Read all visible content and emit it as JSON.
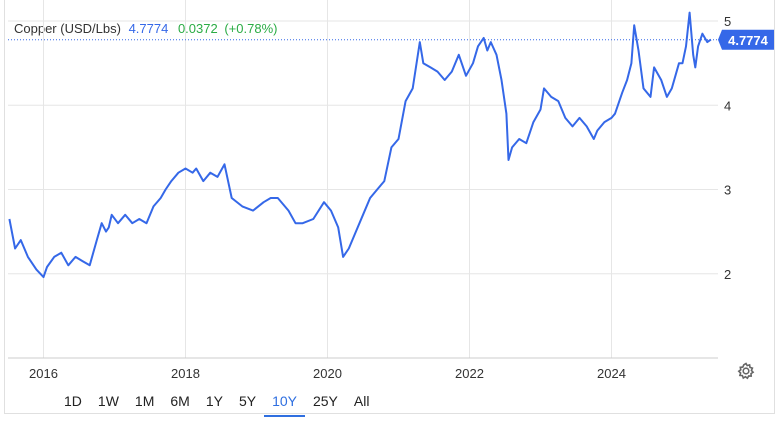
{
  "header": {
    "name": "Copper (USD/Lbs)",
    "price": "4.7774",
    "change": "0.0372",
    "change_pct": "(+0.78%)"
  },
  "colors": {
    "line": "#3568e8",
    "price_tag": "#3568e8",
    "up": "#2bac45",
    "grid": "#e6e6e6",
    "price_line": "#3568e8"
  },
  "price_tag": "4.7774",
  "ranges": [
    "1D",
    "1W",
    "1M",
    "6M",
    "1Y",
    "5Y",
    "10Y",
    "25Y",
    "All"
  ],
  "active_range": "10Y",
  "settings_icon": "gear-icon",
  "chart_data": {
    "type": "line",
    "title": "Copper (USD/Lbs)",
    "xlim": [
      2015.5,
      2025.5
    ],
    "ylim": [
      1.0,
      5.25
    ],
    "yticks": [
      2,
      3,
      4,
      5
    ],
    "ytick_labels": [
      "2",
      "3",
      "4",
      "5"
    ],
    "xticks": [
      2016,
      2018,
      2020,
      2022,
      2024
    ],
    "xtick_labels": [
      "2016",
      "2018",
      "2020",
      "2022",
      "2024"
    ],
    "grid": true,
    "last_value": 4.7774,
    "series": [
      {
        "x": [
          2015.52,
          2015.6,
          2015.68,
          2015.78,
          2015.9,
          2016.0,
          2016.05,
          2016.15,
          2016.25,
          2016.35,
          2016.45,
          2016.55,
          2016.65,
          2016.75,
          2016.82,
          2016.88,
          2016.92,
          2016.96,
          2017.05,
          2017.15,
          2017.25,
          2017.35,
          2017.45,
          2017.55,
          2017.65,
          2017.72,
          2017.8,
          2017.9,
          2018.0,
          2018.1,
          2018.15,
          2018.25,
          2018.35,
          2018.45,
          2018.55,
          2018.65,
          2018.8,
          2018.95,
          2019.1,
          2019.2,
          2019.3,
          2019.45,
          2019.55,
          2019.65,
          2019.8,
          2019.95,
          2020.05,
          2020.15,
          2020.22,
          2020.3,
          2020.4,
          2020.5,
          2020.6,
          2020.7,
          2020.8,
          2020.9,
          2021.0,
          2021.1,
          2021.2,
          2021.3,
          2021.35,
          2021.45,
          2021.55,
          2021.65,
          2021.75,
          2021.85,
          2021.95,
          2022.05,
          2022.12,
          2022.2,
          2022.25,
          2022.3,
          2022.38,
          2022.45,
          2022.52,
          2022.55,
          2022.6,
          2022.7,
          2022.8,
          2022.9,
          2023.0,
          2023.05,
          2023.15,
          2023.25,
          2023.35,
          2023.45,
          2023.55,
          2023.65,
          2023.75,
          2023.8,
          2023.9,
          2024.0,
          2024.05,
          2024.15,
          2024.22,
          2024.28,
          2024.32,
          2024.38,
          2024.45,
          2024.55,
          2024.6,
          2024.7,
          2024.78,
          2024.85,
          2024.9,
          2024.95,
          2025.0,
          2025.05,
          2025.1,
          2025.15,
          2025.18,
          2025.22,
          2025.28,
          2025.35,
          2025.4
        ],
        "y": [
          2.65,
          2.3,
          2.4,
          2.2,
          2.05,
          1.96,
          2.08,
          2.2,
          2.25,
          2.1,
          2.2,
          2.15,
          2.1,
          2.4,
          2.6,
          2.5,
          2.55,
          2.7,
          2.6,
          2.7,
          2.6,
          2.65,
          2.6,
          2.8,
          2.9,
          3.0,
          3.1,
          3.2,
          3.25,
          3.2,
          3.25,
          3.1,
          3.2,
          3.15,
          3.3,
          2.9,
          2.8,
          2.75,
          2.85,
          2.9,
          2.9,
          2.75,
          2.6,
          2.6,
          2.65,
          2.85,
          2.75,
          2.55,
          2.2,
          2.3,
          2.5,
          2.7,
          2.9,
          3.0,
          3.1,
          3.5,
          3.6,
          4.05,
          4.2,
          4.75,
          4.5,
          4.45,
          4.4,
          4.3,
          4.4,
          4.6,
          4.35,
          4.5,
          4.7,
          4.8,
          4.65,
          4.75,
          4.6,
          4.3,
          3.9,
          3.35,
          3.5,
          3.6,
          3.55,
          3.8,
          3.95,
          4.2,
          4.1,
          4.05,
          3.85,
          3.75,
          3.85,
          3.75,
          3.6,
          3.7,
          3.8,
          3.85,
          3.9,
          4.15,
          4.3,
          4.5,
          4.95,
          4.65,
          4.2,
          4.1,
          4.45,
          4.3,
          4.1,
          4.2,
          4.35,
          4.5,
          4.5,
          4.7,
          5.1,
          4.6,
          4.45,
          4.7,
          4.85,
          4.75,
          4.78
        ]
      }
    ]
  }
}
